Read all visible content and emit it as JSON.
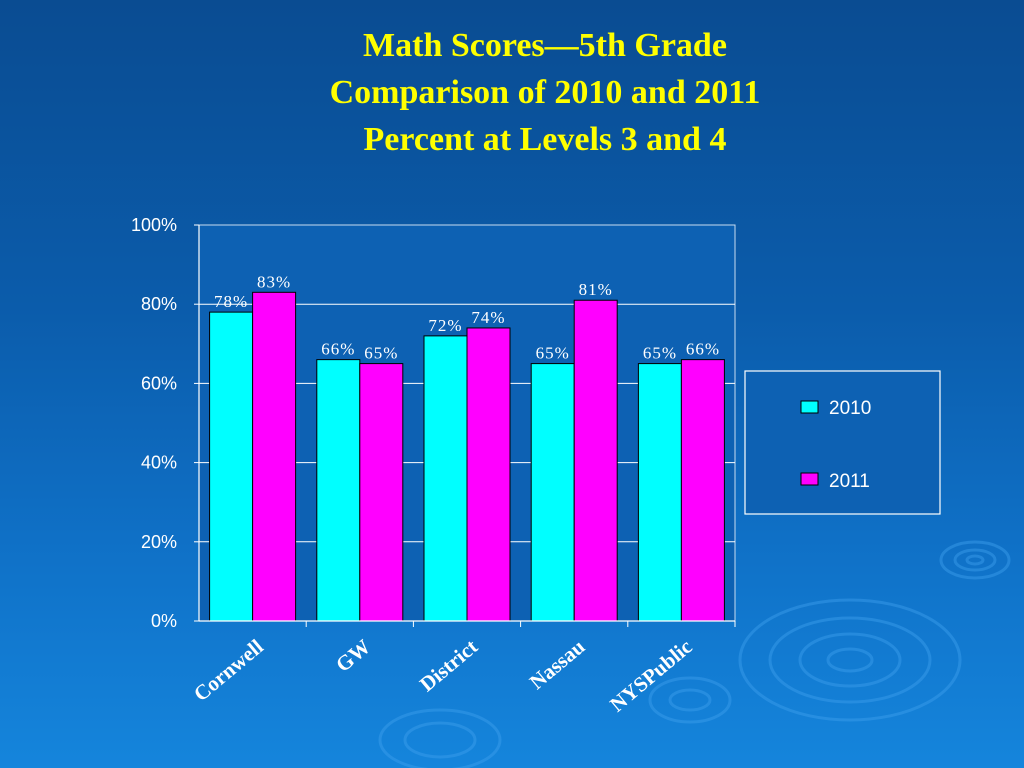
{
  "title_lines": [
    "Math Scores—5th Grade",
    "Comparison of 2010 and 2011",
    "Percent at Levels 3 and 4"
  ],
  "colors": {
    "series_2010": "#00ffff",
    "series_2011": "#ff00ff",
    "title": "#ffff00",
    "plot_background": "#0d61b3",
    "gridline": "#ffffff"
  },
  "chart_data": {
    "type": "bar",
    "title": "Math Scores—5th Grade Comparison of 2010 and 2011 Percent at Levels 3 and 4",
    "categories": [
      "Cornwell",
      "GW",
      "District",
      "Nassau",
      "NYSPublic"
    ],
    "series": [
      {
        "name": "2010",
        "values": [
          78,
          66,
          72,
          65,
          65
        ],
        "labels": [
          "78%",
          "66%",
          "72%",
          "65%",
          "65%"
        ]
      },
      {
        "name": "2011",
        "values": [
          83,
          65,
          74,
          81,
          66
        ],
        "labels": [
          "83%",
          "65%",
          "74%",
          "81%",
          "66%"
        ]
      }
    ],
    "ylim": [
      0,
      100
    ],
    "yticks": [
      0,
      20,
      40,
      60,
      80,
      100
    ],
    "ytick_labels": [
      "0%",
      "20%",
      "40%",
      "60%",
      "80%",
      "100%"
    ],
    "xlabel": "",
    "ylabel": "",
    "grid": true,
    "legend_position": "right"
  }
}
